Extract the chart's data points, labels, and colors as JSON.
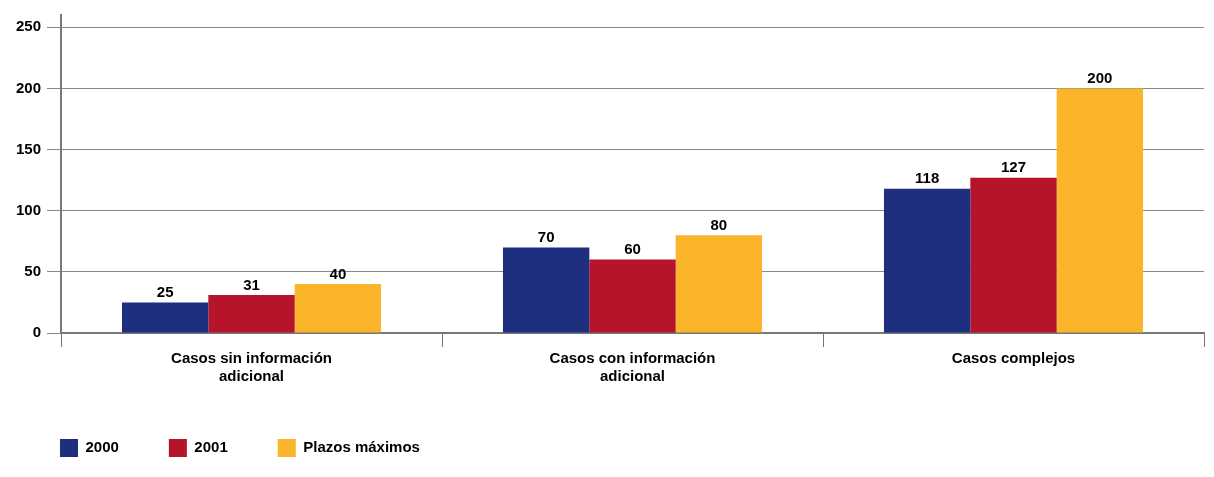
{
  "chart_data": {
    "type": "bar",
    "categories": [
      "Casos sin información adicional",
      "Casos con información adicional",
      "Casos complejos"
    ],
    "series": [
      {
        "name": "2000",
        "color": "#1f2f80",
        "values": [
          25,
          70,
          118
        ]
      },
      {
        "name": "2001",
        "color": "#b5142a",
        "values": [
          31,
          60,
          127
        ]
      },
      {
        "name": "Plazos máximos",
        "color": "#fbb52a",
        "values": [
          40,
          80,
          200
        ]
      }
    ],
    "ylim": [
      0,
      260
    ],
    "yticks": [
      0,
      50,
      100,
      150,
      200,
      250
    ],
    "grid": "y",
    "legend": "bottom left",
    "data_labels": true
  }
}
